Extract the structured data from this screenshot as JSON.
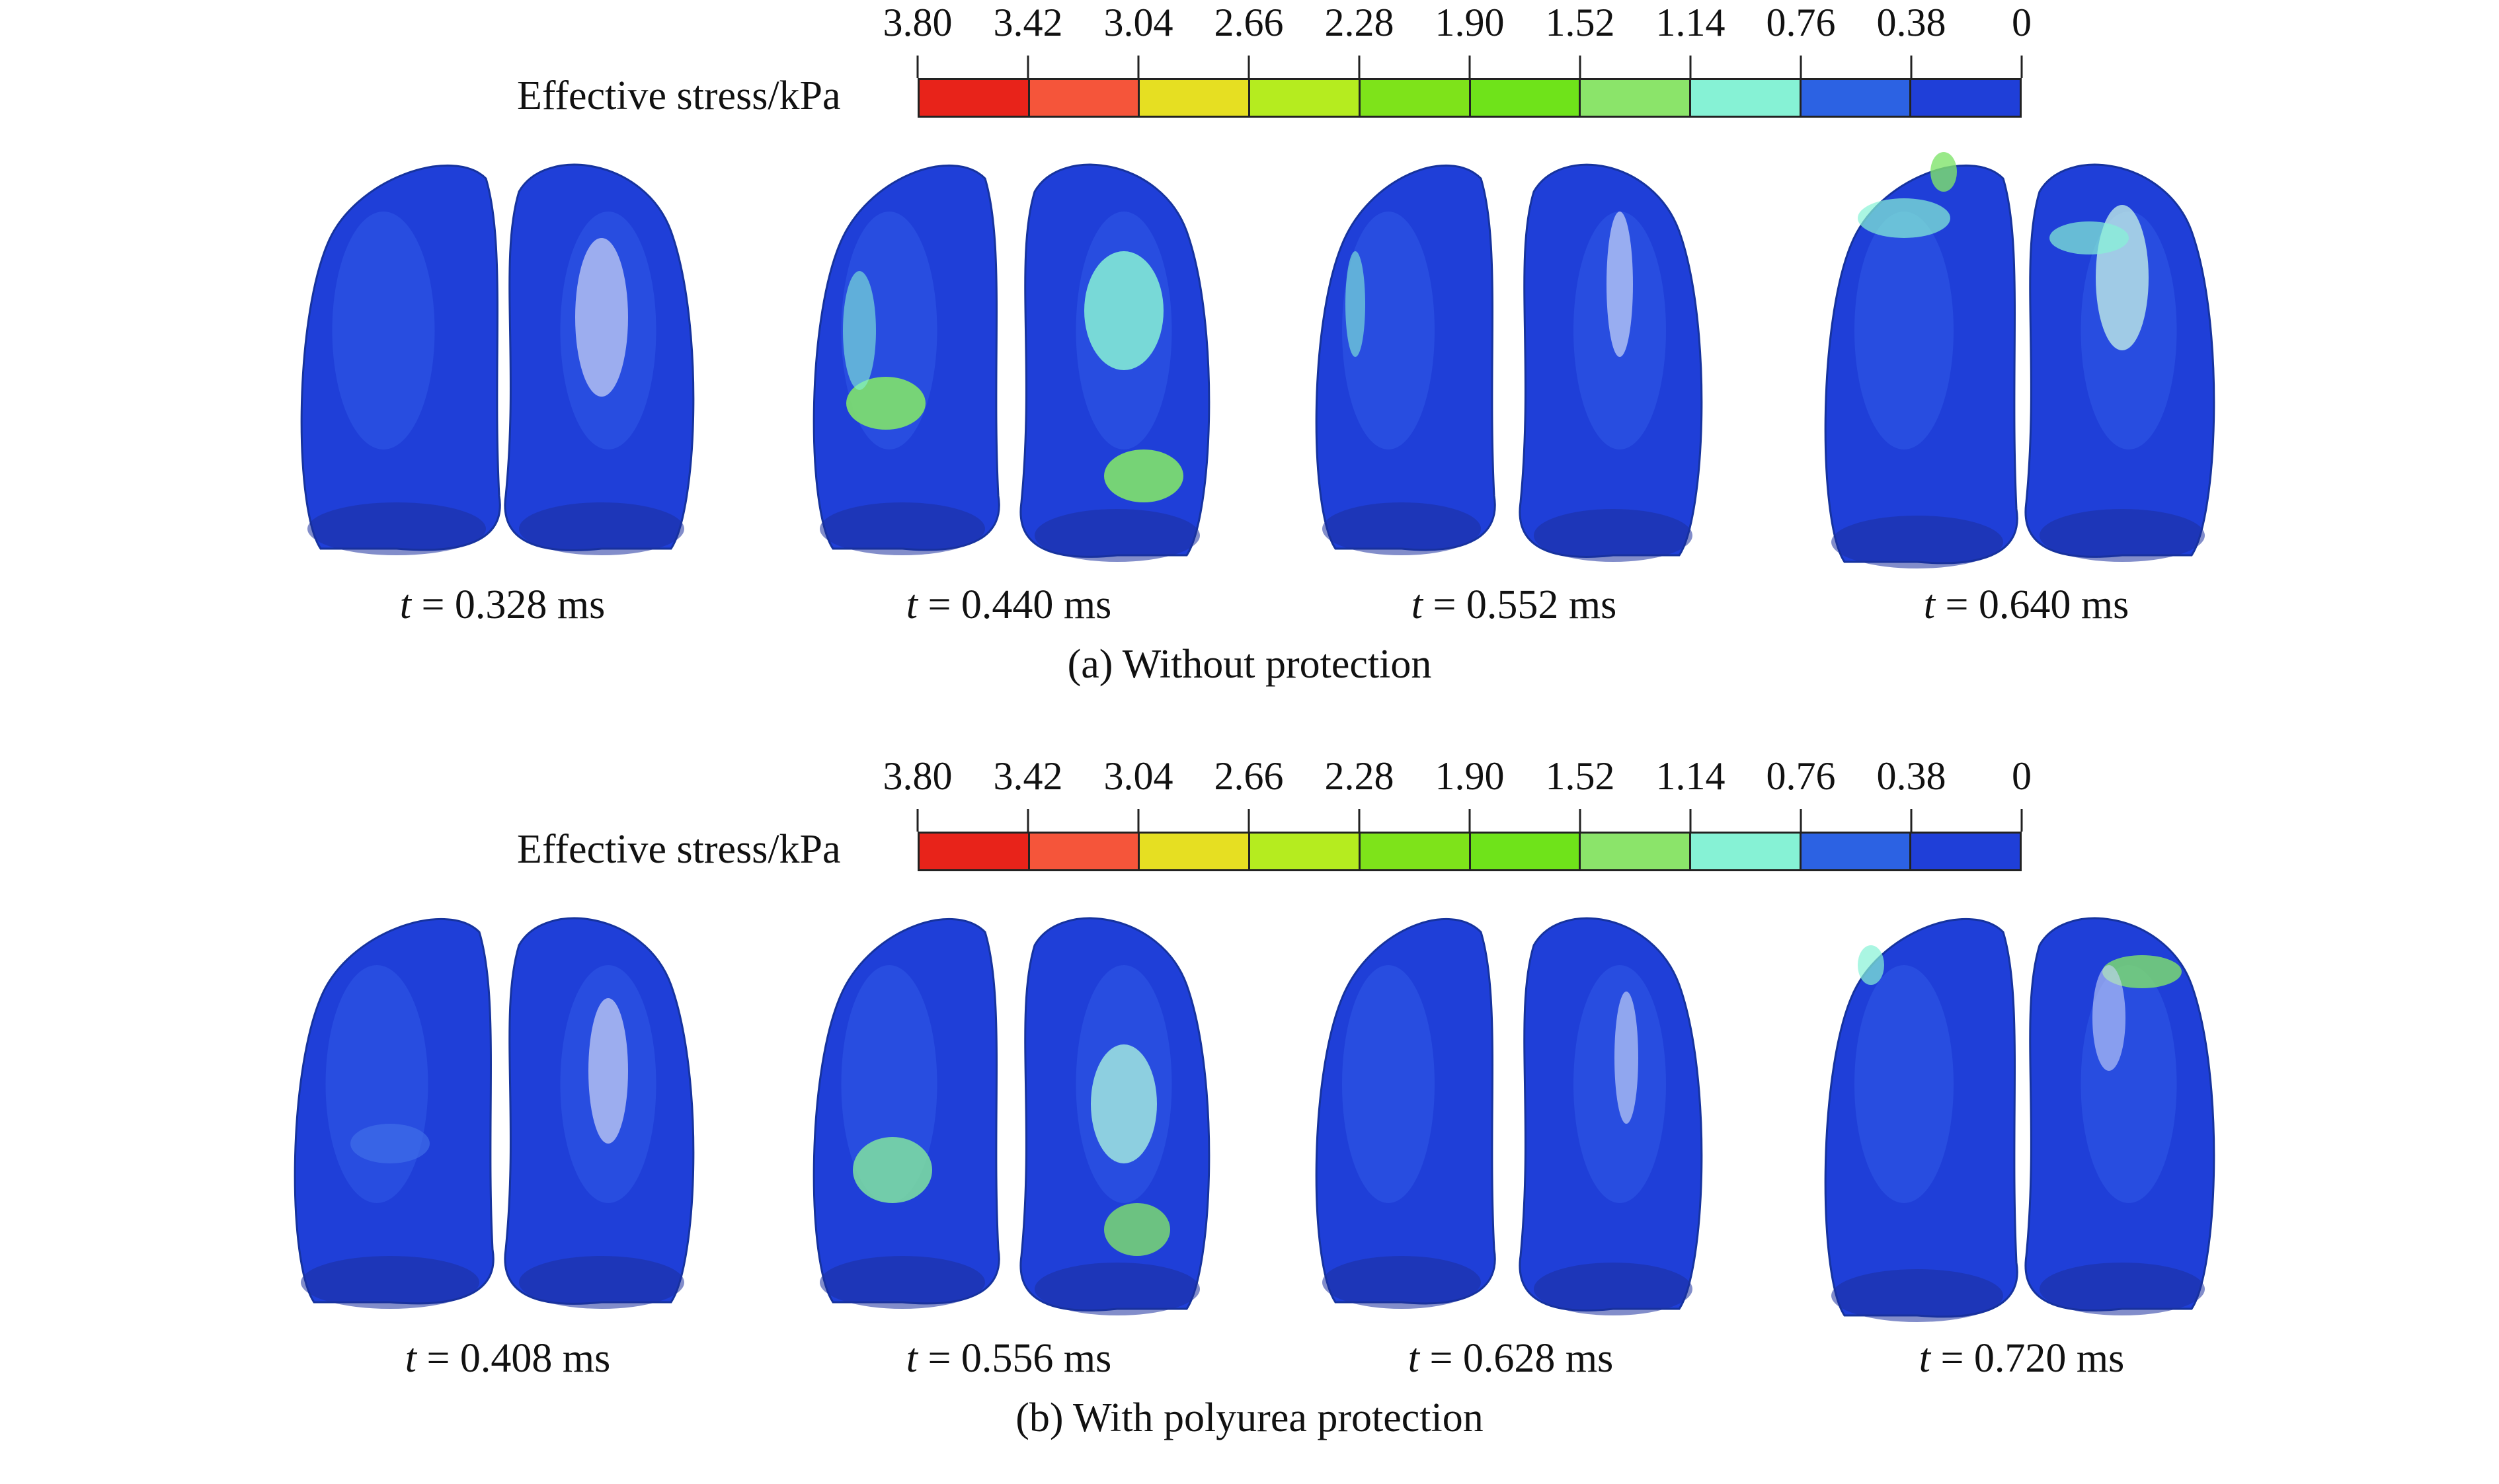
{
  "colorbar": {
    "label": "Effective stress/kPa",
    "ticks": [
      "3.80",
      "3.42",
      "3.04",
      "2.66",
      "2.28",
      "1.90",
      "1.52",
      "1.14",
      "0.76",
      "0.38",
      "0"
    ],
    "colors": [
      "#e8231a",
      "#f5553a",
      "#e6df22",
      "#b5ec1f",
      "#7ee31a",
      "#6fe31a",
      "#8be46a",
      "#86f2d5",
      "#2c62e3",
      "#1f3fd8"
    ]
  },
  "panels": [
    {
      "caption": "(a) Without protection",
      "times": [
        {
          "var": "t",
          "text": " = 0.328 ms"
        },
        {
          "var": "t",
          "text": " = 0.440 ms"
        },
        {
          "var": "t",
          "text": " = 0.552 ms"
        },
        {
          "var": "t",
          "text": " = 0.640 ms"
        }
      ]
    },
    {
      "caption": "(b) With polyurea protection",
      "times": [
        {
          "var": "t",
          "text": " = 0.408 ms"
        },
        {
          "var": "t",
          "text": " = 0.556 ms"
        },
        {
          "var": "t",
          "text": " = 0.628 ms"
        },
        {
          "var": "t",
          "text": " = 0.720 ms"
        }
      ]
    }
  ]
}
